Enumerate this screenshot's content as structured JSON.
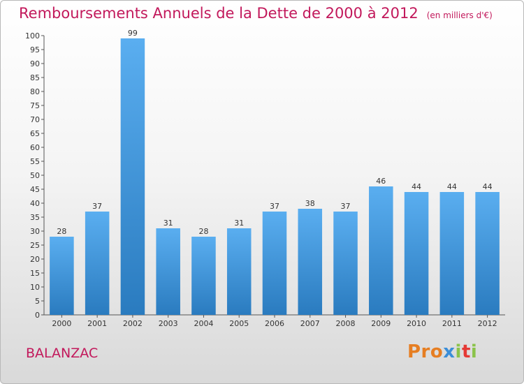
{
  "title": "Remboursements Annuels de la Dette de 2000 à 2012",
  "unit": "(en milliers d'€)",
  "commune": "BALANZAC",
  "logo": {
    "part1": "Pro",
    "part2": "x",
    "part3": "i",
    "part4": "t",
    "part5": "i"
  },
  "colors": {
    "accent": "#c2185b",
    "bar_top": "#5aaef0",
    "bar_bottom": "#2a7bbf"
  },
  "chart_data": {
    "type": "bar",
    "categories": [
      "2000",
      "2001",
      "2002",
      "2003",
      "2004",
      "2005",
      "2006",
      "2007",
      "2008",
      "2009",
      "2010",
      "2011",
      "2012"
    ],
    "values": [
      28,
      37,
      99,
      31,
      28,
      31,
      37,
      38,
      37,
      46,
      44,
      44,
      44
    ],
    "ylim": [
      0,
      100
    ],
    "yticks": [
      0,
      5,
      10,
      15,
      20,
      25,
      30,
      35,
      40,
      45,
      50,
      55,
      60,
      65,
      70,
      75,
      80,
      85,
      90,
      95,
      100
    ],
    "grid": false,
    "legend": "none"
  }
}
